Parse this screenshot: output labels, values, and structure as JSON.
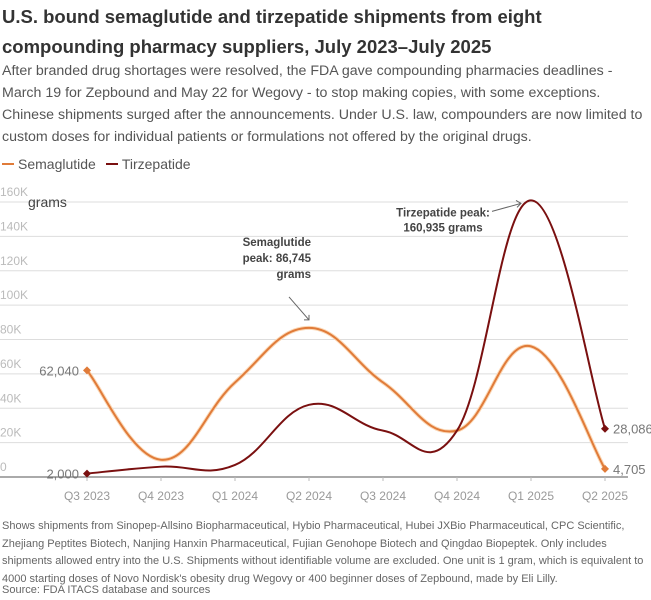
{
  "header": {
    "title": "U.S. bound semaglutide and tirzepatide shipments from eight compounding pharmacy suppliers, July 2023–July 2025",
    "subtitle": "After branded drug shortages were resolved, the FDA gave compounding pharmacies deadlines - March 19 for Zepbound and May 22 for Wegovy - to stop making copies, with some exceptions. Chinese shipments surged after the announcements. Under U.S. law, compounders are now limited to custom doses for individual patients or formulations not offered by the original drugs."
  },
  "legend": [
    {
      "label": "Semaglutide",
      "color": "#e07b39"
    },
    {
      "label": "Tirzepatide",
      "color": "#7a1010"
    }
  ],
  "chart_data": {
    "type": "line",
    "title": "",
    "xlabel": "",
    "ylabel": "grams",
    "ylim": [
      0,
      160000
    ],
    "yticks": [
      0,
      20000,
      40000,
      60000,
      80000,
      100000,
      120000,
      140000,
      160000
    ],
    "ytick_labels": [
      "0",
      "20K",
      "40K",
      "60K",
      "80K",
      "100K",
      "120K",
      "140K",
      "160K"
    ],
    "categories": [
      "Q3 2023",
      "Q4 2023",
      "Q1 2024",
      "Q2 2024",
      "Q3 2024",
      "Q4 2024",
      "Q1 2025",
      "Q2 2025"
    ],
    "grid": true,
    "legend_position": "top-left",
    "series": [
      {
        "name": "Semaglutide",
        "color": "#e07b39",
        "values": [
          62040,
          10000,
          55000,
          86745,
          55000,
          27000,
          76000,
          4705
        ]
      },
      {
        "name": "Tirzepatide",
        "color": "#7a1010",
        "values": [
          2000,
          6000,
          7000,
          42000,
          27000,
          27000,
          160935,
          28086
        ]
      }
    ],
    "endpoint_labels": [
      {
        "series": "Semaglutide",
        "index": 0,
        "text": "62,040",
        "side": "left"
      },
      {
        "series": "Tirzepatide",
        "index": 0,
        "text": "2,000",
        "side": "left"
      },
      {
        "series": "Tirzepatide",
        "index": 7,
        "text": "28,086",
        "side": "right"
      },
      {
        "series": "Semaglutide",
        "index": 7,
        "text": "4,705",
        "side": "right"
      }
    ],
    "annotations": [
      {
        "series": "Semaglutide",
        "index": 3,
        "lines": [
          "Semaglutide",
          "peak: 86,745",
          "grams"
        ]
      },
      {
        "series": "Tirzepatide",
        "index": 6,
        "lines": [
          "Tirzepatide peak:",
          "160,935 grams"
        ]
      }
    ]
  },
  "footer": {
    "note": "Shows shipments from Sinopep-Allsino Biopharmaceutical, Hybio Pharmaceutical, Hubei JXBio Pharmaceutical, CPC Scientific, Zhejiang Peptites Biotech, Nanjing Hanxin Pharmaceutical, Fujian Genohope Biotech and Qingdao Biopeptek. Only includes shipments allowed entry into the U.S. Shipments without identifiable volume are excluded. One unit is 1 gram, which is equivalent to 4000 starting doses of Novo Nordisk's obesity drug Wegovy or 400 beginner doses of Zepbound, made by Eli Lilly.",
    "source": "Source: FDA ITACS database and sources"
  }
}
